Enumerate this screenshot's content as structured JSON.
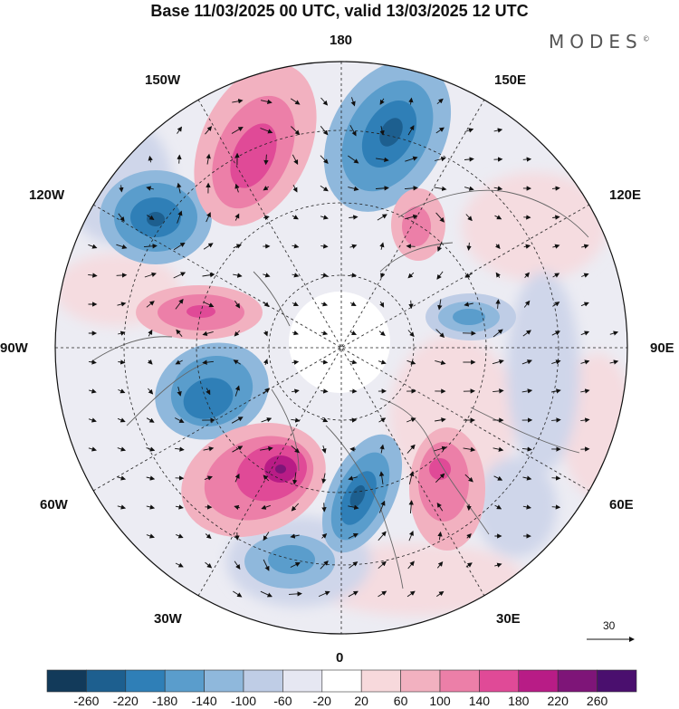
{
  "title": "Base 11/03/2025 00 UTC, valid 13/03/2025 12 UTC",
  "brand": "MODES",
  "brand_mark": "©",
  "longitude_labels": {
    "top": "180",
    "bottom": "0",
    "left": "90W",
    "right": "90E",
    "upper_left_outer": "150W",
    "upper_right_outer": "150E",
    "mid_left_upper": "120W",
    "mid_right_upper": "120E",
    "mid_left_lower": "60W",
    "mid_right_lower": "60E",
    "lower_left": "30W",
    "lower_right": "30E"
  },
  "reference_vector": {
    "label": "30"
  },
  "colorbar": {
    "ticks": [
      "-260",
      "-220",
      "-180",
      "-140",
      "-100",
      "-60",
      "-20",
      "20",
      "60",
      "100",
      "140",
      "180",
      "220",
      "260"
    ],
    "colors": [
      "#123a5a",
      "#1d5f8f",
      "#2f7fb7",
      "#5a9dcc",
      "#8fb8dc",
      "#bfcde6",
      "#e6e7f2",
      "#ffffff",
      "#f7d9dc",
      "#f2b1c0",
      "#ec7fa8",
      "#e04a97",
      "#b81c86",
      "#7e1578",
      "#4a0f6e"
    ]
  },
  "map_features": {
    "projection": "north-polar-stereographic",
    "anomaly_cells": [
      {
        "name": "blue-cell-aleutian",
        "color": "#2f7fb7"
      },
      {
        "name": "blue-cell-canada-west",
        "color": "#2f7fb7"
      },
      {
        "name": "blue-cell-labrador",
        "color": "#2f7fb7"
      },
      {
        "name": "blue-cell-scandinavia",
        "color": "#1d5f8f"
      },
      {
        "name": "blue-cell-north-atlantic",
        "color": "#5a9dcc"
      },
      {
        "name": "blue-cell-siberia",
        "color": "#5a9dcc"
      },
      {
        "name": "pink-cell-north-pacific",
        "color": "#e04a97"
      },
      {
        "name": "pink-cell-greenland-sea",
        "color": "#b81c86"
      },
      {
        "name": "pink-cell-canada",
        "color": "#ec7fa8"
      },
      {
        "name": "pink-cell-east-europe",
        "color": "#e04a97"
      },
      {
        "name": "pink-cell-east-siberia",
        "color": "#ec7fa8"
      }
    ]
  }
}
